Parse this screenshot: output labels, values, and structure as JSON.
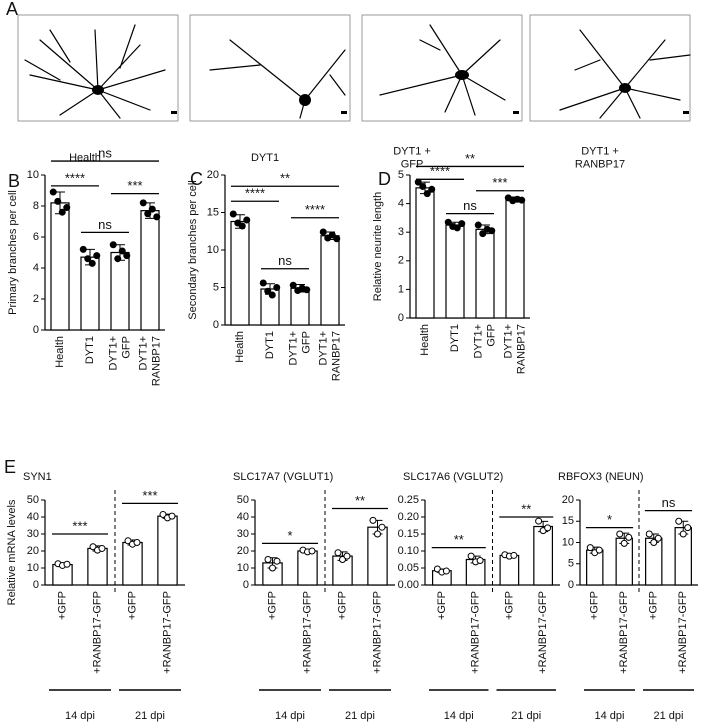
{
  "panel_a": {
    "letter": "A",
    "labels": [
      "Health",
      "DYT1",
      "DYT1 +\nGFP",
      "DYT1 +\nRANBP17"
    ]
  },
  "chart_data": [
    {
      "type": "bar",
      "panel": "B",
      "ylabel": "Primary branches per cell",
      "color": "#ffffff",
      "categories": [
        "Health",
        "DYT1",
        "DYT1+\nGFP",
        "DYT1+\nRANBP17"
      ],
      "values": [
        8.2,
        4.7,
        5.0,
        7.7
      ],
      "errors": [
        0.7,
        0.5,
        0.5,
        0.5
      ],
      "points": [
        [
          8.9,
          8.3,
          7.6,
          7.9
        ],
        [
          5.2,
          4.6,
          4.3,
          4.8
        ],
        [
          5.5,
          4.6,
          5.1,
          4.8
        ],
        [
          8.2,
          7.5,
          7.8,
          7.3
        ]
      ],
      "ylim": [
        0,
        10
      ],
      "yticks": [
        0,
        2,
        4,
        6,
        8,
        10
      ],
      "significance": [
        {
          "from": 0,
          "to": 1,
          "label": "****",
          "y": 9.3
        },
        {
          "from": 0,
          "to": 3,
          "label": "ns",
          "y": 10.9
        },
        {
          "from": 1,
          "to": 2,
          "label": "ns",
          "y": 6.3
        },
        {
          "from": 2,
          "to": 3,
          "label": "***",
          "y": 8.8
        }
      ]
    },
    {
      "type": "bar",
      "panel": "C",
      "ylabel": "Secondary branches per cell",
      "color": "#ffffff",
      "categories": [
        "Health",
        "DYT1",
        "DYT1+\nGFP",
        "DYT1+\nRANBP17"
      ],
      "values": [
        13.8,
        4.8,
        4.9,
        11.9
      ],
      "errors": [
        0.9,
        0.7,
        0.5,
        0.5
      ],
      "points": [
        [
          14.8,
          13.6,
          13.2,
          14.0
        ],
        [
          5.6,
          4.5,
          4.0,
          5.0
        ],
        [
          5.3,
          4.6,
          4.9,
          4.7
        ],
        [
          12.4,
          11.6,
          12.0,
          11.5
        ]
      ],
      "ylim": [
        0,
        20
      ],
      "yticks": [
        0,
        5,
        10,
        15,
        20
      ],
      "significance": [
        {
          "from": 0,
          "to": 1,
          "label": "****",
          "y": 16.5
        },
        {
          "from": 0,
          "to": 3,
          "label": "**",
          "y": 18.5
        },
        {
          "from": 1,
          "to": 2,
          "label": "ns",
          "y": 7.5
        },
        {
          "from": 2,
          "to": 3,
          "label": "****",
          "y": 14.3
        }
      ]
    },
    {
      "type": "bar",
      "panel": "D",
      "ylabel": "Relative neurite length",
      "color": "#ffffff",
      "categories": [
        "Health",
        "DYT1",
        "DYT1+\nGFP",
        "DYT1+\nRANBP17"
      ],
      "values": [
        4.55,
        3.25,
        3.1,
        4.15
      ],
      "errors": [
        0.2,
        0.1,
        0.15,
        0.08
      ],
      "points": [
        [
          4.75,
          4.6,
          4.35,
          4.5
        ],
        [
          3.35,
          3.2,
          3.15,
          3.3
        ],
        [
          3.25,
          2.95,
          3.1,
          3.05
        ],
        [
          4.2,
          4.1,
          4.15,
          4.12
        ]
      ],
      "ylim": [
        0,
        5
      ],
      "yticks": [
        0,
        1,
        2,
        3,
        4,
        5
      ],
      "significance": [
        {
          "from": 0,
          "to": 1,
          "label": "****",
          "y": 4.85
        },
        {
          "from": 0,
          "to": 3,
          "label": "**",
          "y": 5.3
        },
        {
          "from": 1,
          "to": 2,
          "label": "ns",
          "y": 3.65
        },
        {
          "from": 2,
          "to": 3,
          "label": "***",
          "y": 4.45
        }
      ]
    },
    {
      "type": "bar",
      "panel": "E",
      "title": "SYN1",
      "ylabel": "Relative mRNA levels",
      "color": "#ffffff",
      "categories": [
        "+GFP",
        "+RANBP17-GFP",
        "+GFP",
        "+RANBP17-GFP"
      ],
      "groups": [
        "14 dpi",
        "21 dpi"
      ],
      "values": [
        12,
        21.5,
        25,
        40.5
      ],
      "errors": [
        1,
        1.5,
        1.5,
        1.2
      ],
      "points": [
        [
          12.5,
          11.5,
          12.2
        ],
        [
          22.5,
          20.5,
          21.5
        ],
        [
          26,
          24,
          25
        ],
        [
          41.5,
          39.5,
          40.5
        ]
      ],
      "ylim": [
        0,
        50
      ],
      "yticks": [
        0,
        10,
        20,
        30,
        40,
        50
      ],
      "significance": [
        {
          "from": 0,
          "to": 1,
          "label": "***",
          "y": 30
        },
        {
          "from": 2,
          "to": 3,
          "label": "***",
          "y": 48
        }
      ]
    },
    {
      "type": "bar",
      "title": "SLC17A7 (VGLUT1)",
      "color": "#ffffff",
      "categories": [
        "+GFP",
        "+RANBP17-GFP",
        "+GFP",
        "+RANBP17-GFP"
      ],
      "groups": [
        "14 dpi",
        "21 dpi"
      ],
      "values": [
        13,
        20,
        17,
        34
      ],
      "errors": [
        3,
        0.8,
        2.5,
        4
      ],
      "points": [
        [
          15,
          10,
          14
        ],
        [
          20.5,
          19.5,
          20
        ],
        [
          19,
          15,
          17
        ],
        [
          38,
          30,
          34
        ]
      ],
      "ylim": [
        0,
        50
      ],
      "yticks": [
        0,
        10,
        20,
        30,
        40,
        50
      ],
      "significance": [
        {
          "from": 0,
          "to": 1,
          "label": "*",
          "y": 24.5
        },
        {
          "from": 2,
          "to": 3,
          "label": "**",
          "y": 45
        }
      ]
    },
    {
      "type": "bar",
      "title": "SLC17A6 (VGLUT2)",
      "color": "#ffffff",
      "categories": [
        "+GFP",
        "+RANBP17-GFP",
        "+GFP",
        "+RANBP17-GFP"
      ],
      "groups": [
        "14 dpi",
        "21 dpi"
      ],
      "values": [
        0.042,
        0.075,
        0.087,
        0.172
      ],
      "errors": [
        0.005,
        0.01,
        0.002,
        0.015
      ],
      "points": [
        [
          0.047,
          0.038,
          0.041
        ],
        [
          0.085,
          0.068,
          0.072
        ],
        [
          0.089,
          0.085,
          0.087
        ],
        [
          0.188,
          0.16,
          0.168
        ]
      ],
      "ylim": [
        0,
        0.25
      ],
      "yticks": [
        {
          "value": 0,
          "label": "0.00"
        },
        {
          "value": 0.05,
          "label": "0.05"
        },
        {
          "value": 0.1,
          "label": "0.10"
        },
        {
          "value": 0.15,
          "label": "0.15"
        },
        {
          "value": 0.2,
          "label": "0.20"
        },
        {
          "value": 0.25,
          "label": "0.25"
        }
      ],
      "significance": [
        {
          "from": 0,
          "to": 1,
          "label": "**",
          "y": 0.11
        },
        {
          "from": 2,
          "to": 3,
          "label": "**",
          "y": 0.2
        }
      ]
    },
    {
      "type": "bar",
      "title": "RBFOX3 (NEUN)",
      "color": "#ffffff",
      "categories": [
        "+GFP",
        "+RANBP17-GFP",
        "+GFP",
        "+RANBP17-GFP"
      ],
      "groups": [
        "14 dpi",
        "21 dpi"
      ],
      "values": [
        8.2,
        11,
        11,
        13.5
      ],
      "errors": [
        0.7,
        1.2,
        1,
        1.5
      ],
      "points": [
        [
          8.8,
          7.6,
          8.2
        ],
        [
          12,
          9.8,
          11.2
        ],
        [
          12,
          10,
          11
        ],
        [
          15,
          12,
          13.5
        ]
      ],
      "ylim": [
        0,
        20
      ],
      "yticks": [
        0,
        5,
        10,
        15,
        20
      ],
      "significance": [
        {
          "from": 0,
          "to": 1,
          "label": "*",
          "y": 13.5
        },
        {
          "from": 2,
          "to": 3,
          "label": "ns",
          "y": 17.5
        }
      ]
    }
  ]
}
